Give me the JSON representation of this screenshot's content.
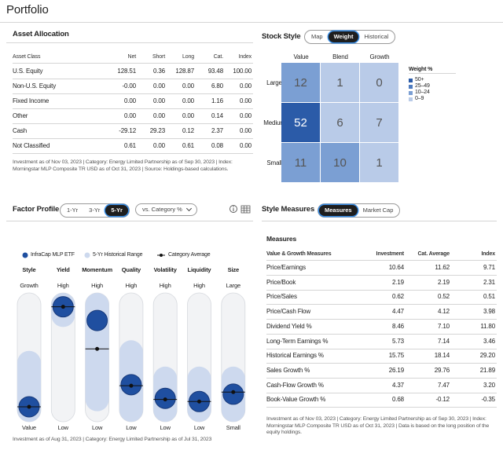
{
  "title": "Portfolio",
  "asset_allocation": {
    "title": "Asset Allocation",
    "columns": [
      "Asset Class",
      "Net",
      "Short",
      "Long",
      "Cat.",
      "Index"
    ],
    "rows": [
      [
        "U.S. Equity",
        "128.51",
        "0.36",
        "128.87",
        "93.48",
        "100.00"
      ],
      [
        "Non-U.S. Equity",
        "-0.00",
        "0.00",
        "0.00",
        "6.80",
        "0.00"
      ],
      [
        "Fixed Income",
        "0.00",
        "0.00",
        "0.00",
        "1.16",
        "0.00"
      ],
      [
        "Other",
        "0.00",
        "0.00",
        "0.00",
        "0.14",
        "0.00"
      ],
      [
        "Cash",
        "-29.12",
        "29.23",
        "0.12",
        "2.37",
        "0.00"
      ],
      [
        "Not Classified",
        "0.61",
        "0.00",
        "0.61",
        "0.08",
        "0.00"
      ]
    ],
    "note": "Investment as of Nov 03, 2023 | Category: Energy Limited Partnership as of Sep 30, 2023 | Index: Morningstar MLP Composite TR USD as of Oct 31, 2023 | Source: Holdings-based calculations."
  },
  "stock_style": {
    "title": "Stock Style",
    "tabs": [
      "Map",
      "Weight",
      "Historical"
    ],
    "active_tab": 1,
    "columns": [
      "Value",
      "Blend",
      "Growth"
    ],
    "rows": [
      "Large",
      "Medium",
      "Small"
    ],
    "weights": [
      [
        12,
        1,
        0
      ],
      [
        52,
        6,
        7
      ],
      [
        11,
        10,
        1
      ]
    ],
    "colors": [
      [
        "#7b9fd3",
        "#b9cbe8",
        "#b9cbe8"
      ],
      [
        "#2b5ba8",
        "#b9cbe8",
        "#b9cbe8"
      ],
      [
        "#7b9fd3",
        "#7b9fd3",
        "#b9cbe8"
      ]
    ],
    "legend": {
      "title": "Weight %",
      "items": [
        {
          "label": "50+",
          "color": "#2b5ba8"
        },
        {
          "label": "25–49",
          "color": "#4f7cc0"
        },
        {
          "label": "10–24",
          "color": "#7b9fd3"
        },
        {
          "label": "0–9",
          "color": "#b9cbe8"
        }
      ]
    }
  },
  "factor_profile": {
    "title": "Factor Profile",
    "tabs": [
      "1-Yr",
      "3-Yr",
      "5-Yr"
    ],
    "active_tab": 2,
    "dropdown": "vs. Category %",
    "legend": [
      {
        "label": "InfraCap MLP ETF",
        "color": "#1f4fa0"
      },
      {
        "label": "5-Yr Historical Range",
        "color": "#cdd9ee"
      },
      {
        "label": "Category Average",
        "color": "#111111"
      }
    ],
    "factors": [
      {
        "name": "Style",
        "high": "Growth",
        "low": "Value",
        "value": 3,
        "range": [
          0,
          45
        ],
        "category_average": 3
      },
      {
        "name": "Yield",
        "high": "High",
        "low": "Low",
        "value": 98,
        "range": [
          90,
          100
        ],
        "category_average": 98
      },
      {
        "name": "Momentum",
        "high": "High",
        "low": "Low",
        "value": 85,
        "range": [
          10,
          100
        ],
        "category_average": 58
      },
      {
        "name": "Quality",
        "high": "High",
        "low": "Low",
        "value": 24,
        "range": [
          0,
          55
        ],
        "category_average": 23
      },
      {
        "name": "Volatility",
        "high": "High",
        "low": "Low",
        "value": 11,
        "range": [
          0,
          30
        ],
        "category_average": 10
      },
      {
        "name": "Liquidity",
        "high": "High",
        "low": "Low",
        "value": 8,
        "range": [
          0,
          30
        ],
        "category_average": 8
      },
      {
        "name": "Size",
        "high": "Large",
        "low": "Small",
        "value": 15,
        "range": [
          0,
          30
        ],
        "category_average": 17
      }
    ],
    "note": "Investment as of Aug 31, 2023 | Category: Energy Limited Partnership as of Jul 31, 2023"
  },
  "style_measures": {
    "title": "Style Measures",
    "tabs": [
      "Measures",
      "Market Cap"
    ],
    "active_tab": 0,
    "subtitle": "Measures",
    "columns": [
      "Value & Growth Measures",
      "Investment",
      "Cat. Average",
      "Index"
    ],
    "rows": [
      [
        "Price/Earnings",
        "10.64",
        "11.62",
        "9.71"
      ],
      [
        "Price/Book",
        "2.19",
        "2.19",
        "2.31"
      ],
      [
        "Price/Sales",
        "0.62",
        "0.52",
        "0.51"
      ],
      [
        "Price/Cash Flow",
        "4.47",
        "4.12",
        "3.98"
      ],
      [
        "Dividend Yield %",
        "8.46",
        "7.10",
        "11.80"
      ],
      [
        "Long-Term Earnings %",
        "5.73",
        "7.14",
        "3.46"
      ],
      [
        "Historical Earnings %",
        "15.75",
        "18.14",
        "29.20"
      ],
      [
        "Sales Growth %",
        "26.19",
        "29.76",
        "21.89"
      ],
      [
        "Cash-Flow Growth %",
        "4.37",
        "7.47",
        "3.20"
      ],
      [
        "Book-Value Growth %",
        "0.68",
        "-0.12",
        "-0.35"
      ]
    ],
    "note": "Investment as of Nov 03, 2023 | Category: Energy Limited Partnership as of Sep 30, 2023 | Index: Morningstar MLP Composite TR USD as of Oct 31, 2023 | Data is based on the long position of the equity holdings."
  }
}
